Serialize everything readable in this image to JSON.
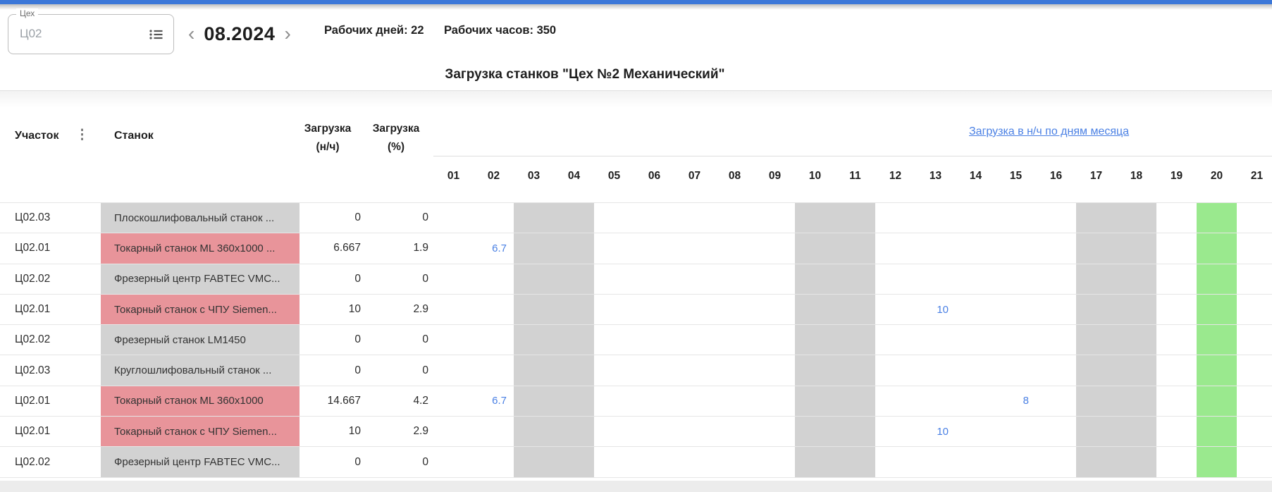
{
  "colors": {
    "topbar_blue": "#3b77d8",
    "accent_blue": "#4a80e4",
    "cell_red": "#e8949a",
    "cell_gray": "#d2d2d2",
    "weekend_gray": "#d2d2d2",
    "today_green": "#9ae98e"
  },
  "filter": {
    "label": "Цех",
    "value": "Ц02",
    "icon": "list-icon"
  },
  "month_nav": {
    "prev": "‹",
    "value": "08.2024",
    "next": "›"
  },
  "stats": {
    "working_days_label": "Рабочих дней:",
    "working_days_value": "22",
    "working_hours_label": "Рабочих часов:",
    "working_hours_value": "350"
  },
  "title": "Загрузка станков \"Цех №2 Механический\"",
  "table": {
    "col_area": "Участок",
    "col_machine": "Станок",
    "col_load_nh_line1": "Загрузка",
    "col_load_nh_line2": "(н/ч)",
    "col_load_pct_line1": "Загрузка",
    "col_load_pct_line2": "(%)",
    "days_group_link": "Загрузка в н/ч по дням месяца",
    "days": [
      "01",
      "02",
      "03",
      "04",
      "05",
      "06",
      "07",
      "08",
      "09",
      "10",
      "11",
      "12",
      "13",
      "14",
      "15",
      "16",
      "17",
      "18",
      "19",
      "20",
      "21"
    ],
    "weekend_days": [
      3,
      4,
      10,
      11,
      17,
      18
    ],
    "highlight_day": 20,
    "rows": [
      {
        "area": "Ц02.03",
        "machine": "Плоскошлифовальный станок ...",
        "machine_status": "gray",
        "load_nh": "0",
        "load_pct": "0",
        "day_values": {}
      },
      {
        "area": "Ц02.01",
        "machine": "Токарный станок ML 360x1000 ...",
        "machine_status": "red",
        "load_nh": "6.667",
        "load_pct": "1.9",
        "day_values": {
          "02": "6.7"
        }
      },
      {
        "area": "Ц02.02",
        "machine": "Фрезерный центр FABTEC VMC...",
        "machine_status": "gray",
        "load_nh": "0",
        "load_pct": "0",
        "day_values": {}
      },
      {
        "area": "Ц02.01",
        "machine": "Токарный станок с ЧПУ Siemen...",
        "machine_status": "red",
        "load_nh": "10",
        "load_pct": "2.9",
        "day_values": {
          "13": "10"
        }
      },
      {
        "area": "Ц02.02",
        "machine": "Фрезерный станок LM1450",
        "machine_status": "gray",
        "load_nh": "0",
        "load_pct": "0",
        "day_values": {}
      },
      {
        "area": "Ц02.03",
        "machine": "Круглошлифовальный станок ...",
        "machine_status": "gray",
        "load_nh": "0",
        "load_pct": "0",
        "day_values": {}
      },
      {
        "area": "Ц02.01",
        "machine": "Токарный станок ML 360x1000",
        "machine_status": "red",
        "load_nh": "14.667",
        "load_pct": "4.2",
        "day_values": {
          "02": "6.7",
          "15": "8"
        }
      },
      {
        "area": "Ц02.01",
        "machine": "Токарный станок с ЧПУ Siemen...",
        "machine_status": "red",
        "load_nh": "10",
        "load_pct": "2.9",
        "day_values": {
          "13": "10"
        }
      },
      {
        "area": "Ц02.02",
        "machine": "Фрезерный центр FABTEC VMC...",
        "machine_status": "gray",
        "load_nh": "0",
        "load_pct": "0",
        "day_values": {}
      }
    ]
  }
}
